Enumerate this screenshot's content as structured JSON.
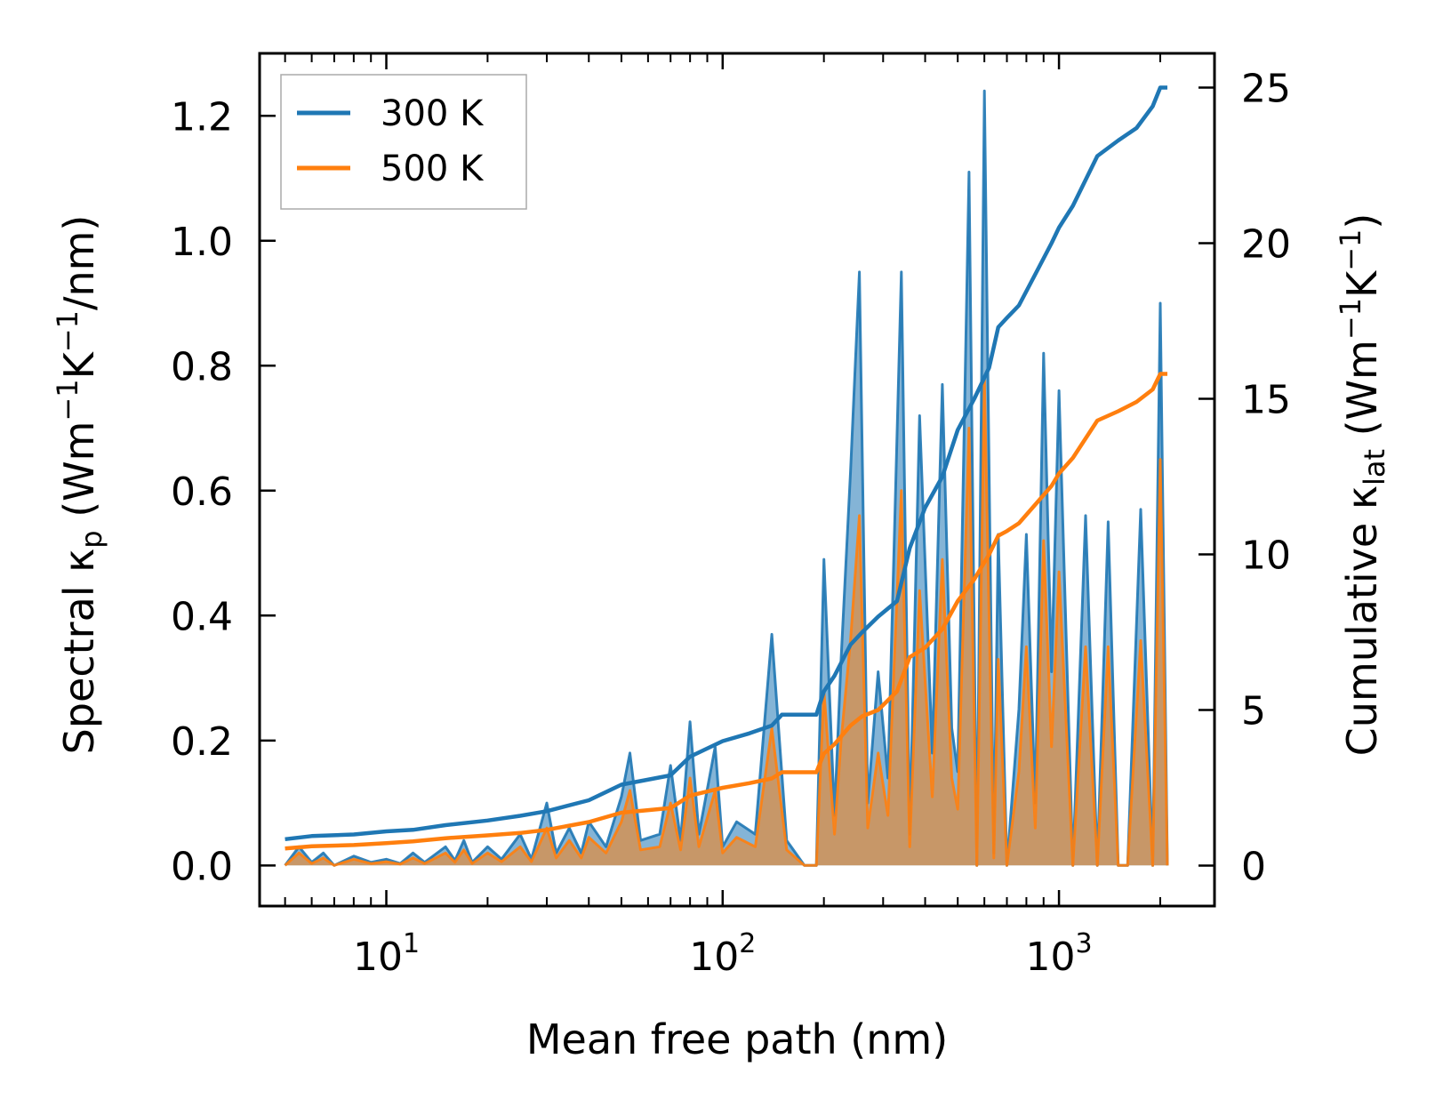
{
  "chart_data": {
    "type": "line",
    "xlabel": "Mean free path (nm)",
    "ylabel_left": "Spectral κp (Wm⁻¹K⁻¹/nm)",
    "ylabel_right": "Cumulative κlat (Wm⁻¹K⁻¹)",
    "xscale": "log",
    "xlim": [
      4.2,
      2900
    ],
    "ylim_left": [
      -0.065,
      1.3
    ],
    "ylim_right": [
      -1.3,
      26.1
    ],
    "x_ticks": [
      {
        "value": 10,
        "base": "10",
        "exp": "1"
      },
      {
        "value": 100,
        "base": "10",
        "exp": "2"
      },
      {
        "value": 1000,
        "base": "10",
        "exp": "3"
      }
    ],
    "yticks_left": [
      {
        "value": 0.0,
        "label": "0.0"
      },
      {
        "value": 0.2,
        "label": "0.2"
      },
      {
        "value": 0.4,
        "label": "0.4"
      },
      {
        "value": 0.6,
        "label": "0.6"
      },
      {
        "value": 0.8,
        "label": "0.8"
      },
      {
        "value": 1.0,
        "label": "1.0"
      },
      {
        "value": 1.2,
        "label": "1.2"
      }
    ],
    "yticks_right": [
      {
        "value": 0,
        "label": "0"
      },
      {
        "value": 5,
        "label": "5"
      },
      {
        "value": 10,
        "label": "10"
      },
      {
        "value": 15,
        "label": "15"
      },
      {
        "value": 20,
        "label": "20"
      },
      {
        "value": 25,
        "label": "25"
      }
    ],
    "legend": [
      {
        "label": "300 K",
        "color": "#1f77b4"
      },
      {
        "label": "500 K",
        "color": "#ff7f0e"
      }
    ],
    "legend_position": "top-left",
    "series": [
      {
        "name": "300 K spectral",
        "axis": "left",
        "kind": "filled",
        "color": "#1f77b4",
        "x": [
          5.0,
          5.5,
          6.0,
          6.5,
          7.0,
          8.0,
          9.0,
          10.0,
          11.0,
          12.0,
          13.0,
          15.0,
          16.0,
          17.0,
          18.0,
          20.0,
          22.0,
          25.0,
          27.0,
          30.0,
          32.0,
          35.0,
          38.0,
          40.0,
          45.0,
          50.0,
          53.0,
          57.0,
          65.0,
          70.0,
          75.0,
          80.0,
          85.0,
          95.0,
          100.0,
          110.0,
          125.0,
          140.0,
          155.0,
          175.0,
          190.0,
          200.0,
          215.0,
          225.0,
          240.0,
          255.0,
          270.0,
          290.0,
          310.0,
          340.0,
          360.0,
          385.0,
          420.0,
          450.0,
          480.0,
          500.0,
          540.0,
          570.0,
          600.0,
          640.0,
          660.0,
          700.0,
          760.0,
          800.0,
          850.0,
          900.0,
          950.0,
          1000.0,
          1100.0,
          1200.0,
          1300.0,
          1400.0,
          1500.0,
          1600.0,
          1750.0,
          1900.0,
          2000.0,
          2100.0
        ],
        "y": [
          0.0,
          0.03,
          0.005,
          0.02,
          0.0,
          0.015,
          0.005,
          0.01,
          0.003,
          0.02,
          0.005,
          0.03,
          0.008,
          0.04,
          0.005,
          0.03,
          0.01,
          0.05,
          0.01,
          0.1,
          0.02,
          0.06,
          0.02,
          0.07,
          0.03,
          0.11,
          0.18,
          0.04,
          0.05,
          0.16,
          0.04,
          0.23,
          0.05,
          0.19,
          0.03,
          0.07,
          0.05,
          0.37,
          0.04,
          0.0,
          0.0,
          0.49,
          0.08,
          0.33,
          0.63,
          0.95,
          0.1,
          0.31,
          0.14,
          0.95,
          0.05,
          0.72,
          0.18,
          0.77,
          0.22,
          0.15,
          1.11,
          0.0,
          1.24,
          0.02,
          0.53,
          0.0,
          0.25,
          0.53,
          0.1,
          0.82,
          0.31,
          0.76,
          0.0,
          0.56,
          0.0,
          0.55,
          0.0,
          0.0,
          0.57,
          0.0,
          0.9,
          0.0
        ]
      },
      {
        "name": "500 K spectral",
        "axis": "left",
        "kind": "filled",
        "color": "#ff7f0e",
        "x": [
          5.0,
          5.5,
          6.0,
          6.5,
          7.0,
          8.0,
          9.0,
          10.0,
          11.0,
          12.0,
          13.0,
          15.0,
          16.0,
          17.0,
          18.0,
          20.0,
          22.0,
          25.0,
          27.0,
          30.0,
          32.0,
          35.0,
          38.0,
          40.0,
          45.0,
          50.0,
          53.0,
          57.0,
          65.0,
          70.0,
          75.0,
          80.0,
          85.0,
          95.0,
          100.0,
          110.0,
          125.0,
          140.0,
          155.0,
          175.0,
          190.0,
          200.0,
          215.0,
          225.0,
          240.0,
          255.0,
          270.0,
          290.0,
          310.0,
          340.0,
          360.0,
          385.0,
          420.0,
          450.0,
          480.0,
          500.0,
          540.0,
          570.0,
          600.0,
          640.0,
          660.0,
          700.0,
          760.0,
          800.0,
          850.0,
          900.0,
          950.0,
          1000.0,
          1100.0,
          1200.0,
          1300.0,
          1400.0,
          1500.0,
          1600.0,
          1750.0,
          1900.0,
          2000.0,
          2100.0
        ],
        "y": [
          0.0,
          0.02,
          0.003,
          0.012,
          0.0,
          0.01,
          0.003,
          0.006,
          0.002,
          0.012,
          0.003,
          0.02,
          0.005,
          0.025,
          0.003,
          0.02,
          0.006,
          0.03,
          0.006,
          0.06,
          0.012,
          0.04,
          0.012,
          0.045,
          0.02,
          0.07,
          0.12,
          0.025,
          0.03,
          0.1,
          0.025,
          0.14,
          0.03,
          0.12,
          0.02,
          0.045,
          0.03,
          0.22,
          0.025,
          0.0,
          0.0,
          0.28,
          0.05,
          0.2,
          0.36,
          0.56,
          0.06,
          0.18,
          0.08,
          0.6,
          0.03,
          0.44,
          0.11,
          0.49,
          0.14,
          0.09,
          0.7,
          0.0,
          0.78,
          0.012,
          0.33,
          0.0,
          0.15,
          0.35,
          0.06,
          0.52,
          0.19,
          0.47,
          0.0,
          0.35,
          0.0,
          0.35,
          0.0,
          0.0,
          0.36,
          0.0,
          0.65,
          0.0
        ]
      },
      {
        "name": "300 K",
        "axis": "right",
        "kind": "line",
        "color": "#1f77b4",
        "x": [
          5.0,
          6.0,
          8.0,
          10.0,
          12.0,
          15.0,
          20.0,
          25.0,
          30.0,
          40.0,
          50.0,
          70.0,
          80.0,
          100.0,
          120.0,
          140.0,
          150.0,
          190.0,
          200.0,
          215.0,
          240.0,
          260.0,
          290.0,
          330.0,
          360.0,
          400.0,
          450.0,
          500.0,
          560.0,
          620.0,
          660.0,
          700.0,
          760.0,
          850.0,
          950.0,
          1000.0,
          1100.0,
          1300.0,
          1500.0,
          1700.0,
          1900.0,
          2000.0,
          2100.0
        ],
        "y": [
          0.85,
          0.95,
          1.0,
          1.1,
          1.15,
          1.3,
          1.45,
          1.6,
          1.75,
          2.1,
          2.6,
          2.9,
          3.5,
          4.0,
          4.25,
          4.5,
          4.85,
          4.85,
          5.6,
          6.1,
          7.1,
          7.5,
          8.0,
          8.5,
          10.2,
          11.5,
          12.5,
          14.0,
          15.0,
          16.0,
          17.3,
          17.6,
          18.0,
          19.0,
          20.0,
          20.5,
          21.2,
          22.8,
          23.3,
          23.7,
          24.4,
          25.0,
          25.0
        ]
      },
      {
        "name": "500 K",
        "axis": "right",
        "kind": "line",
        "color": "#ff7f0e",
        "x": [
          5.0,
          6.0,
          8.0,
          10.0,
          12.0,
          15.0,
          20.0,
          25.0,
          30.0,
          40.0,
          50.0,
          70.0,
          80.0,
          100.0,
          120.0,
          140.0,
          150.0,
          190.0,
          200.0,
          215.0,
          240.0,
          260.0,
          290.0,
          330.0,
          360.0,
          400.0,
          450.0,
          500.0,
          560.0,
          620.0,
          660.0,
          700.0,
          760.0,
          850.0,
          950.0,
          1000.0,
          1100.0,
          1300.0,
          1500.0,
          1700.0,
          1900.0,
          2000.0,
          2100.0
        ],
        "y": [
          0.55,
          0.62,
          0.66,
          0.72,
          0.78,
          0.88,
          0.97,
          1.05,
          1.15,
          1.4,
          1.7,
          1.85,
          2.25,
          2.5,
          2.65,
          2.8,
          3.0,
          3.0,
          3.6,
          3.9,
          4.5,
          4.8,
          5.0,
          5.6,
          6.7,
          7.0,
          7.6,
          8.5,
          9.2,
          10.0,
          10.6,
          10.75,
          11.0,
          11.6,
          12.2,
          12.6,
          13.1,
          14.3,
          14.6,
          14.9,
          15.3,
          15.8,
          15.8
        ]
      }
    ]
  }
}
